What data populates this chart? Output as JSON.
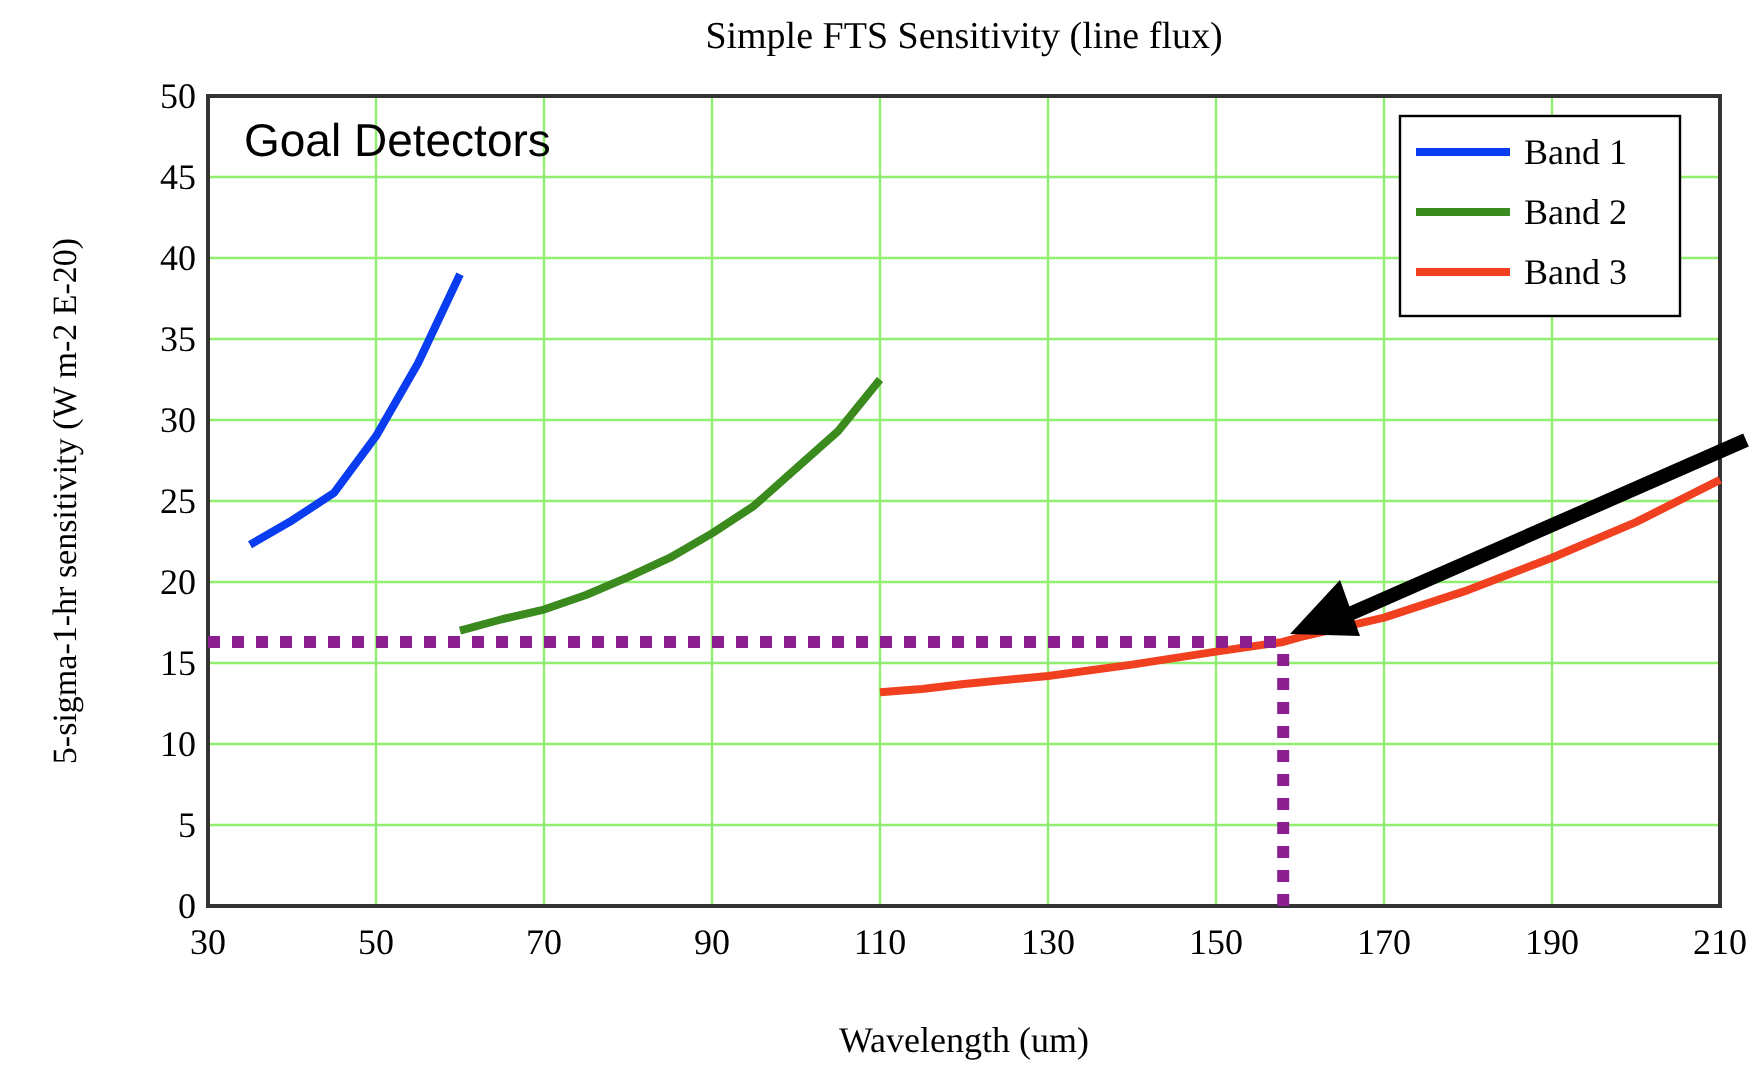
{
  "chart_data": {
    "type": "line",
    "title": "Simple FTS Sensitivity  (line flux)",
    "xlabel": "Wavelength (um)",
    "ylabel": "5-sigma-1-hr sensitivity  (W m-2 E-20)",
    "xlim": [
      30,
      210
    ],
    "xticks": [
      30,
      50,
      70,
      90,
      110,
      130,
      150,
      170,
      190,
      210
    ],
    "ylim": [
      0,
      50
    ],
    "yticks": [
      0,
      5,
      10,
      15,
      20,
      25,
      30,
      35,
      40,
      45,
      50
    ],
    "grid": true,
    "legend": "top right",
    "annotations": [
      "Goal Detectors"
    ],
    "series": [
      {
        "name": "Band 1",
        "color": "#0a3cf0",
        "x": [
          35,
          40,
          45,
          50,
          55,
          60
        ],
        "values": [
          22.3,
          23.8,
          25.5,
          29,
          33.5,
          39
        ]
      },
      {
        "name": "Band 2",
        "color": "#3a8a1e",
        "x": [
          60,
          65,
          70,
          75,
          80,
          85,
          90,
          95,
          100,
          105,
          110
        ],
        "values": [
          17,
          17.7,
          18.3,
          19.2,
          20.3,
          21.5,
          23,
          24.7,
          27,
          29.3,
          32.5
        ]
      },
      {
        "name": "Band 3",
        "color": "#f04020",
        "x": [
          110,
          115,
          120,
          130,
          140,
          150,
          158,
          160,
          170,
          180,
          190,
          200,
          210
        ],
        "values": [
          13.2,
          13.4,
          13.7,
          14.2,
          14.9,
          15.7,
          16.3,
          16.6,
          17.8,
          19.5,
          21.5,
          23.7,
          26.3
        ]
      },
      {
        "color": "#8b1f8f",
        "line_style": "dotted",
        "x": [
          30,
          158
        ],
        "values": [
          16.3,
          16.3
        ]
      },
      {
        "color": "#8b1f8f",
        "line_style": "dotted",
        "x": [
          158,
          158
        ],
        "values": [
          0,
          16.3
        ]
      }
    ]
  }
}
